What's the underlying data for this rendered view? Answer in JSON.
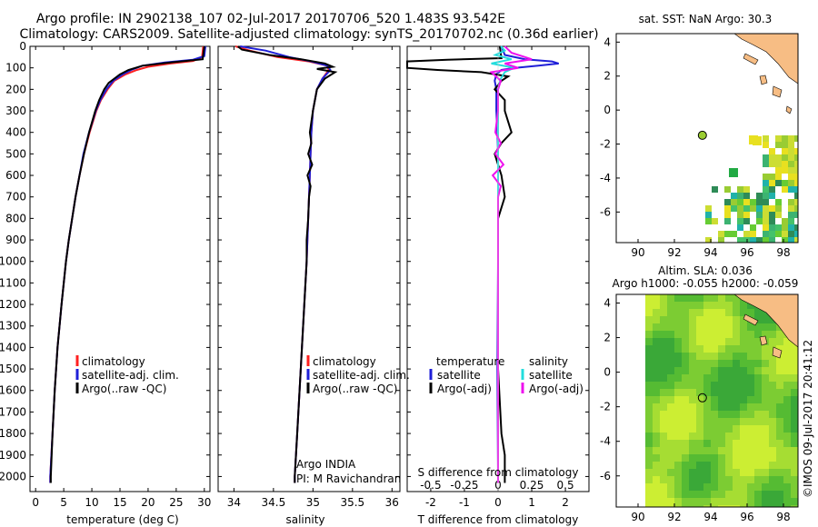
{
  "header": {
    "title_line1": "Argo profile: IN 2902138_107 02-Jul-2017 20170706_520 1.483S 93.542E",
    "title_line2": "Climatology: CARS2009. Satellite-adjusted climatology: synTS_20170702.nc (0.36d earlier)"
  },
  "credit": "©IMOS 09-Jul-2017 20:41:12",
  "colors": {
    "climatology": "#ff2020",
    "satellite": "#1f1fd8",
    "argo": "#000000",
    "salinity_satellite": "#22dddd",
    "salinity_argo": "#ee11ee",
    "land": "#f7bd84"
  },
  "chart_data": [
    {
      "type": "line",
      "panel": "temperature",
      "xlabel": "temperature (deg C)",
      "ylabel": "",
      "xlim": [
        -1,
        31
      ],
      "ylim": [
        2070,
        0
      ],
      "xticks": [
        "0",
        "5",
        "10",
        "15",
        "20",
        "25",
        "30"
      ],
      "xtick_values": [
        0,
        5,
        10,
        15,
        20,
        25,
        30
      ],
      "yticks": [
        "0",
        "100",
        "200",
        "300",
        "400",
        "500",
        "600",
        "700",
        "800",
        "900",
        "1000",
        "1100",
        "1200",
        "1300",
        "1400",
        "1500",
        "1600",
        "1700",
        "1800",
        "1900",
        "2000"
      ],
      "legend": [
        "climatology",
        "satellite-adj. clim.",
        "Argo(..raw -QC)"
      ],
      "series": [
        {
          "name": "climatology",
          "depth": [
            0,
            50,
            68,
            80,
            95,
            110,
            130,
            160,
            200,
            250,
            300,
            400,
            500,
            600,
            700,
            800,
            900,
            1000,
            1200,
            1400,
            1600,
            1800,
            2000,
            2030
          ],
          "values": [
            29.8,
            29.6,
            28,
            24,
            20,
            18,
            16,
            14,
            12.8,
            11.6,
            10.8,
            9.6,
            8.6,
            7.8,
            7.1,
            6.5,
            5.9,
            5.4,
            4.6,
            3.9,
            3.4,
            3.0,
            2.6,
            2.6
          ]
        },
        {
          "name": "satellite-adj. clim.",
          "depth": [
            0,
            45,
            62,
            75,
            90,
            110,
            130,
            160,
            200,
            250,
            300,
            400,
            500,
            600,
            700,
            800,
            900,
            1000,
            1200,
            1400,
            1600,
            1800,
            2000,
            2030
          ],
          "values": [
            30.2,
            30,
            28,
            23,
            19,
            17,
            15.5,
            13.8,
            12.6,
            11.5,
            10.7,
            9.5,
            8.5,
            7.8,
            7.1,
            6.5,
            5.9,
            5.4,
            4.6,
            3.9,
            3.4,
            3.0,
            2.6,
            2.6
          ]
        },
        {
          "name": "Argo(..raw -QC)",
          "depth": [
            0,
            60,
            75,
            90,
            110,
            130,
            150,
            170,
            200,
            250,
            300,
            400,
            500,
            600,
            700,
            800,
            900,
            1000,
            1200,
            1400,
            1600,
            1800,
            2000,
            2030
          ],
          "values": [
            30,
            29.7,
            24,
            19,
            16.5,
            15,
            14,
            13,
            12.2,
            11.3,
            10.6,
            9.5,
            8.6,
            7.8,
            7.1,
            6.5,
            5.9,
            5.4,
            4.6,
            3.9,
            3.4,
            3.0,
            2.7,
            2.7
          ]
        }
      ]
    },
    {
      "type": "line",
      "panel": "salinity",
      "xlabel": "salinity",
      "ylabel": "",
      "xlim": [
        33.8,
        36.1
      ],
      "ylim": [
        2070,
        0
      ],
      "xticks": [
        "34",
        "34.5",
        "35",
        "35.5",
        "36"
      ],
      "xtick_values": [
        34,
        34.5,
        35,
        35.5,
        36
      ],
      "legend": [
        "climatology",
        "satellite-adj. clim.",
        "Argo(..raw -QC)"
      ],
      "series": [
        {
          "name": "climatology",
          "depth": [
            0,
            20,
            50,
            70,
            90,
            110,
            150,
            200,
            300,
            400,
            500,
            600,
            800,
            1000,
            1200,
            1400,
            1600,
            1800,
            2000,
            2030
          ],
          "values": [
            34.02,
            34.2,
            34.55,
            34.95,
            35.18,
            35.2,
            35.12,
            35.05,
            35.0,
            34.98,
            34.97,
            34.96,
            34.94,
            34.92,
            34.89,
            34.86,
            34.83,
            34.8,
            34.77,
            34.77
          ]
        },
        {
          "name": "satellite-adj. clim.",
          "depth": [
            0,
            20,
            50,
            70,
            90,
            110,
            150,
            200,
            300,
            400,
            500,
            600,
            800,
            1000,
            1200,
            1400,
            1600,
            1800,
            2000,
            2030
          ],
          "values": [
            34.08,
            34.4,
            34.7,
            34.98,
            35.18,
            35.22,
            35.12,
            35.05,
            35.0,
            34.98,
            34.97,
            34.96,
            34.94,
            34.92,
            34.89,
            34.86,
            34.83,
            34.8,
            34.77,
            34.77
          ]
        },
        {
          "name": "Argo(..raw -QC)",
          "depth": [
            0,
            15,
            40,
            60,
            80,
            95,
            105,
            120,
            150,
            200,
            300,
            400,
            450,
            500,
            550,
            600,
            650,
            700,
            800,
            900,
            1000,
            1200,
            1400,
            1600,
            1800,
            2000,
            2030
          ],
          "values": [
            34.05,
            34.1,
            34.45,
            34.85,
            35.15,
            35.25,
            35.05,
            35.28,
            35.15,
            35.05,
            35.0,
            34.96,
            34.98,
            34.94,
            34.99,
            34.93,
            34.97,
            34.95,
            34.94,
            34.92,
            34.92,
            34.89,
            34.86,
            34.83,
            34.8,
            34.77,
            34.77
          ]
        }
      ]
    },
    {
      "type": "line",
      "panel": "difference",
      "xlabel": "T difference from climatology",
      "xlabel_top": "S difference from climatology",
      "xlim": [
        -2.7,
        2.7
      ],
      "ylim": [
        2070,
        0
      ],
      "xticks": [
        "-2",
        "-1",
        "0",
        "1",
        "2"
      ],
      "xtick_values": [
        -2,
        -1,
        0,
        1,
        2
      ],
      "xticks_top": [
        "-0.5",
        "-0.25",
        "0",
        "0.25",
        "0.5"
      ],
      "xtick_top_values": [
        -0.5,
        -0.25,
        0,
        0.25,
        0.5
      ],
      "legend_temperature_title": "temperature",
      "legend_salinity_title": "salinity",
      "legend": [
        "satellite",
        "Argo(-adj)",
        "satellite",
        "Argo(-adj)"
      ],
      "series": [
        {
          "name": "temperature satellite",
          "depth": [
            0,
            40,
            60,
            70,
            80,
            90,
            100,
            110,
            130,
            160,
            200,
            300,
            400,
            500,
            700,
            1000,
            1500,
            2000,
            2030
          ],
          "values": [
            0.1,
            0.2,
            0.8,
            1.6,
            1.8,
            1.2,
            0.5,
            0.1,
            -0.05,
            -0.1,
            -0.05,
            -0.05,
            -0.02,
            0,
            0,
            0,
            -0.02,
            0,
            0
          ]
        },
        {
          "name": "temperature Argo(-adj)",
          "depth": [
            0,
            55,
            62,
            70,
            80,
            90,
            100,
            110,
            120,
            140,
            160,
            200,
            250,
            300,
            350,
            400,
            450,
            500,
            600,
            700,
            800,
            1000,
            1200,
            1500,
            1800,
            1900,
            2030
          ],
          "values": [
            0.05,
            0.1,
            -1.5,
            -2.7,
            -2.7,
            -2.7,
            -2.7,
            -1.8,
            -0.5,
            0.3,
            0.1,
            -0.1,
            0.2,
            0.2,
            0.3,
            0.4,
            0.1,
            -0.1,
            0.1,
            0.2,
            0.0,
            0.0,
            0.0,
            0.0,
            0.1,
            0.2,
            0.2
          ]
        },
        {
          "name": "salinity satellite",
          "depth": [
            0,
            20,
            40,
            60,
            80,
            100,
            120,
            150,
            200,
            300,
            400,
            500,
            700,
            1000,
            1500,
            2030
          ],
          "values": [
            0.02,
            0.05,
            -0.02,
            0.1,
            -0.05,
            0.12,
            0.05,
            0.02,
            0.0,
            0.0,
            0.0,
            0.0,
            0.0,
            0.0,
            0.0,
            0.0
          ]
        },
        {
          "name": "salinity Argo(-adj)",
          "depth": [
            0,
            30,
            60,
            80,
            100,
            120,
            160,
            200,
            300,
            400,
            450,
            500,
            550,
            600,
            650,
            700,
            800,
            1000,
            1200,
            1500,
            1800,
            2030
          ],
          "values": [
            0.05,
            0.1,
            0.25,
            0.05,
            0.15,
            -0.05,
            0.02,
            0.0,
            0.0,
            -0.02,
            0.02,
            -0.02,
            0.04,
            -0.04,
            0.02,
            0.0,
            0.0,
            0.0,
            0.0,
            0.0,
            0.0,
            0.0
          ]
        }
      ]
    },
    {
      "type": "heatmap",
      "panel": "sst_map",
      "title": "sat. SST: NaN Argo: 30.3",
      "xlim": [
        88.8,
        98.8
      ],
      "ylim": [
        -7.8,
        4.5
      ],
      "xticks": [
        "90",
        "92",
        "94",
        "96",
        "98"
      ],
      "xtick_values": [
        90,
        92,
        94,
        96,
        98
      ],
      "yticks": [
        "4",
        "2",
        "0",
        "-2",
        "-4",
        "-6"
      ],
      "ytick_values": [
        4,
        2,
        0,
        -2,
        -4,
        -6
      ],
      "float_position": {
        "lon": 93.542,
        "lat": -1.483
      }
    },
    {
      "type": "heatmap",
      "panel": "sla_map",
      "title_line1": "Altim. SLA: 0.036",
      "title_line2": "Argo h1000: -0.055 h2000: -0.059",
      "xlim": [
        88.8,
        98.8
      ],
      "ylim": [
        -7.8,
        4.5
      ],
      "xticks": [
        "90",
        "92",
        "94",
        "96",
        "98"
      ],
      "xtick_values": [
        90,
        92,
        94,
        96,
        98
      ],
      "yticks": [
        "4",
        "2",
        "0",
        "-2",
        "-4",
        "-6"
      ],
      "ytick_values": [
        4,
        2,
        0,
        -2,
        -4,
        -6
      ],
      "float_position": {
        "lon": 93.542,
        "lat": -1.483
      }
    }
  ],
  "annotations": {
    "platform": "Argo INDIA",
    "pi": "PI: M Ravichandran"
  }
}
